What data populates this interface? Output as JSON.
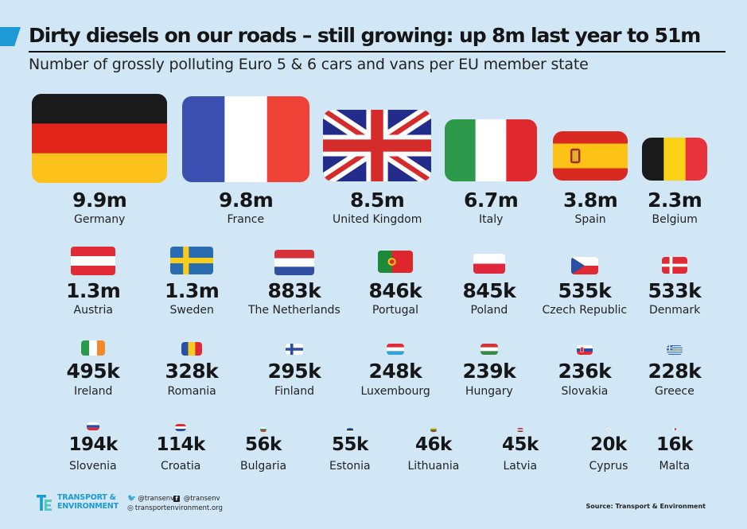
{
  "header": {
    "title": "Dirty diesels on our roads – still growing: up 8m last year to 51m",
    "subtitle": "Number of grossly polluting Euro 5 & 6 cars and vans per EU member state"
  },
  "chart_data": {
    "type": "table",
    "title": "Dirty diesels on our roads – still growing: up 8m last year to 51m",
    "subtitle": "Number of grossly polluting Euro 5 & 6 cars and vans per EU member state",
    "categories": [
      "Germany",
      "France",
      "United Kingdom",
      "Italy",
      "Spain",
      "Belgium",
      "Austria",
      "Sweden",
      "The Netherlands",
      "Portugal",
      "Poland",
      "Czech Republic",
      "Denmark",
      "Ireland",
      "Romania",
      "Finland",
      "Luxembourg",
      "Hungary",
      "Slovakia",
      "Greece",
      "Slovenia",
      "Croatia",
      "Bulgaria",
      "Estonia",
      "Lithuania",
      "Latvia",
      "Cyprus",
      "Malta"
    ],
    "values": [
      9900000,
      9800000,
      8500000,
      6700000,
      3800000,
      2300000,
      1300000,
      1300000,
      883000,
      846000,
      845000,
      535000,
      533000,
      495000,
      328000,
      295000,
      248000,
      239000,
      236000,
      228000,
      194000,
      114000,
      56000,
      55000,
      46000,
      45000,
      20000,
      16000
    ],
    "labels": [
      "9.9m",
      "9.8m",
      "8.5m",
      "6.7m",
      "3.8m",
      "2.3m",
      "1.3m",
      "1.3m",
      "883k",
      "846k",
      "845k",
      "535k",
      "533k",
      "495k",
      "328k",
      "295k",
      "248k",
      "239k",
      "236k",
      "228k",
      "194k",
      "114k",
      "56k",
      "55k",
      "46k",
      "45k",
      "20k",
      "16k"
    ],
    "flag_colors": {
      "Germany": [
        "#1a1a1a",
        "#e1251b",
        "#fcc21b"
      ],
      "France": [
        "#3a4faf",
        "#ffffff",
        "#ef4135"
      ],
      "United Kingdom": [
        "#242c8b",
        "#ffffff",
        "#d52b2b"
      ],
      "Italy": [
        "#2c9a4a",
        "#ffffff",
        "#e0282f"
      ],
      "Spain": [
        "#d92a22",
        "#fcc215"
      ],
      "Belgium": [
        "#1a1a1a",
        "#fcd116",
        "#e8333d"
      ]
    }
  },
  "footer": {
    "logo_line1": "TRANSPORT &",
    "logo_line2": "ENVIRONMENT",
    "twitter": "@transenv",
    "facebook": "@transenv",
    "website": "transportenvironment.org",
    "source": "Source: Transport & Environment"
  },
  "icons": {
    "twitter": "twitter-icon",
    "facebook": "facebook-icon",
    "website": "globe-icon",
    "logo": "te-logo-icon"
  }
}
